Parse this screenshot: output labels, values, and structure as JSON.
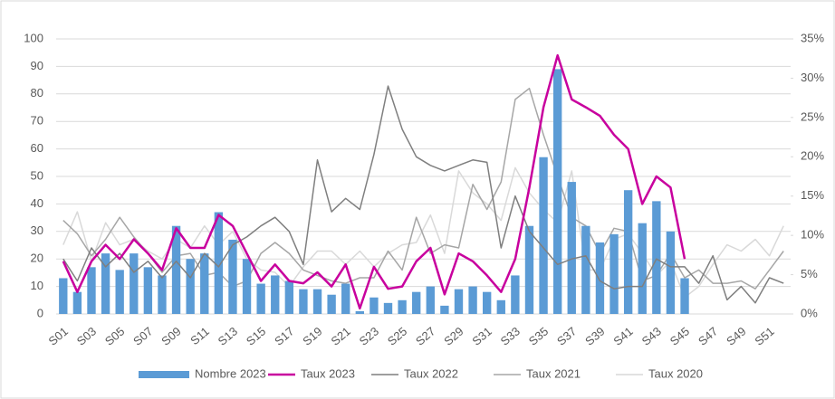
{
  "chart_data": {
    "type": "combo",
    "categories": [
      "S01",
      null,
      "S03",
      null,
      "S05",
      null,
      "S07",
      null,
      "S09",
      null,
      "S11",
      null,
      "S13",
      null,
      "S15",
      null,
      "S17",
      null,
      "S19",
      null,
      "S21",
      null,
      "S23",
      null,
      "S25",
      null,
      "S27",
      null,
      "S29",
      null,
      "S31",
      null,
      "S33",
      null,
      "S35",
      null,
      "S37",
      null,
      "S39",
      null,
      "S41",
      null,
      "S43",
      null,
      "S45",
      null,
      "S47",
      null,
      "S49",
      null,
      "S51",
      null
    ],
    "ylim": [
      0,
      100
    ],
    "yticks": [
      0,
      10,
      20,
      30,
      40,
      50,
      60,
      70,
      80,
      90,
      100
    ],
    "y2lim": [
      0,
      35
    ],
    "y2ticks": [
      {
        "value": 0,
        "label": "0%"
      },
      {
        "value": 5,
        "label": "5%"
      },
      {
        "value": 10,
        "label": "10%"
      },
      {
        "value": 15,
        "label": "15%"
      },
      {
        "value": 20,
        "label": "20%"
      },
      {
        "value": 25,
        "label": "25%"
      },
      {
        "value": 30,
        "label": "30%"
      },
      {
        "value": 35,
        "label": "35%"
      }
    ],
    "grid": true,
    "legend": "bottom",
    "series": [
      {
        "name": "Nombre 2023",
        "type": "bar",
        "color": "#5b9bd5",
        "values": [
          13,
          8,
          17,
          22,
          16,
          22,
          17,
          14,
          32,
          20,
          22,
          37,
          27,
          20,
          11,
          14,
          12,
          9,
          9,
          7,
          11,
          1,
          6,
          4,
          5,
          8,
          10,
          3,
          9,
          10,
          8,
          5,
          14,
          32,
          57,
          89,
          48,
          32,
          26,
          29,
          45,
          33,
          41,
          30,
          13,
          null,
          null,
          null,
          null,
          null,
          null,
          null
        ]
      },
      {
        "name": "Taux 2023",
        "type": "line",
        "axis": "y2",
        "color": "#c8009e",
        "width": 2.5,
        "values": [
          6.7,
          2.8,
          6.7,
          8.8,
          7,
          9.5,
          7.7,
          5.6,
          10.9,
          8.4,
          8.4,
          12.6,
          11.2,
          7.7,
          4.2,
          6.3,
          4.2,
          3.9,
          5.3,
          3.5,
          6.3,
          0.7,
          6,
          3.2,
          3.5,
          6.7,
          8.4,
          2.5,
          7.7,
          6.7,
          4.9,
          2.8,
          7,
          16.1,
          26.3,
          32.9,
          27.3,
          26.3,
          25.2,
          22.8,
          21,
          14,
          17.5,
          16.1,
          7,
          null,
          null,
          null,
          null,
          null,
          null,
          null
        ]
      },
      {
        "name": "Taux 2022",
        "type": "line",
        "axis": "y2",
        "color": "#7f7f7f",
        "width": 1.5,
        "values": [
          7,
          4.2,
          8.4,
          6,
          7.7,
          5.3,
          6.7,
          4.6,
          6.7,
          4.6,
          7.7,
          6,
          8.8,
          9.8,
          11.2,
          12.3,
          10.5,
          6.3,
          19.6,
          13,
          14.7,
          13.3,
          20.3,
          29,
          23.5,
          20,
          18.9,
          18.2,
          18.9,
          19.6,
          19.3,
          8.4,
          15,
          10.5,
          8.4,
          6.3,
          7,
          7.4,
          4.2,
          3.2,
          3.5,
          3.5,
          7,
          6,
          6,
          3.9,
          7.4,
          1.8,
          3.5,
          1.4,
          4.6,
          3.9
        ]
      },
      {
        "name": "Taux 2021",
        "type": "line",
        "axis": "y2",
        "color": "#a6a6a6",
        "width": 1.5,
        "values": [
          11.9,
          10.2,
          7.4,
          9.5,
          12.3,
          9.8,
          7.7,
          5.3,
          7.4,
          7.7,
          4.9,
          5.3,
          3.5,
          4.2,
          7.7,
          9.1,
          7.7,
          5.6,
          4.9,
          4.2,
          3.9,
          4.6,
          4.6,
          8,
          5.6,
          12.3,
          7.7,
          8.8,
          8.4,
          16.5,
          13.3,
          16.8,
          27.3,
          28.7,
          22.8,
          17.5,
          12.3,
          11.2,
          7.7,
          10.9,
          10.5,
          4.2,
          4.9,
          7.7,
          4.6,
          5.6,
          3.9,
          3.9,
          4.2,
          3.2,
          5.6,
          8
        ]
      },
      {
        "name": "Taux 2020",
        "type": "line",
        "axis": "y2",
        "color": "#d9d9d9",
        "width": 1.5,
        "values": [
          8.8,
          13,
          6.7,
          11.6,
          8.8,
          9.5,
          8,
          7,
          9.5,
          8.4,
          11.2,
          8.8,
          10.5,
          7,
          5.6,
          5.3,
          3.5,
          6,
          8,
          8,
          6.3,
          8,
          6,
          7.7,
          8.8,
          9.1,
          12.6,
          7.7,
          18.2,
          15.4,
          14,
          11.9,
          18.6,
          15.4,
          13.3,
          11.6,
          18.2,
          5.6,
          5.6,
          9.5,
          10.2,
          7.7,
          4.9,
          6.7,
          2.1,
          3.5,
          6.3,
          8.8,
          8,
          9.5,
          7.4,
          11.2
        ]
      }
    ]
  }
}
